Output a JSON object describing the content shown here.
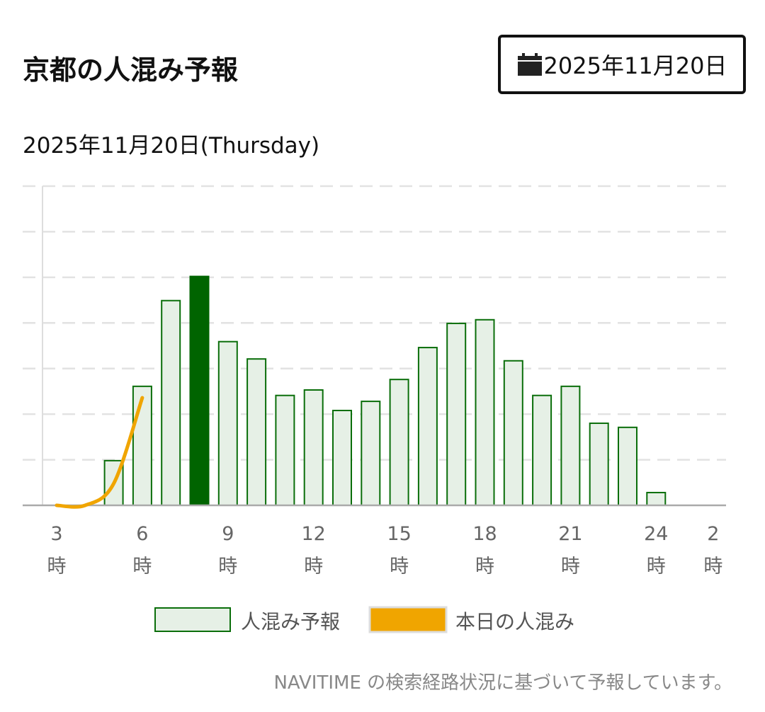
{
  "header": {
    "title": "京都の人混み予報",
    "date_button": "2025年11月20日"
  },
  "chart_data": {
    "type": "bar",
    "title": "2025年11月20日(Thursday)",
    "categories": [
      "3\n時",
      null,
      null,
      "6\n時",
      null,
      null,
      "9\n時",
      null,
      null,
      "12\n時",
      null,
      null,
      "15\n時",
      null,
      null,
      "18\n時",
      null,
      null,
      "21\n時",
      null,
      null,
      "24\n時",
      null,
      "2\n時"
    ],
    "series": [
      {
        "name": "人混み予報",
        "type": "bar",
        "color": "#e6f0e6",
        "edge_color": "#0a6e0a",
        "highlight_color": "#006400",
        "highlight_index": 5,
        "values": [
          0,
          0,
          0.98,
          2.61,
          4.49,
          5.02,
          3.59,
          3.21,
          2.41,
          2.53,
          2.08,
          2.28,
          2.76,
          3.46,
          3.99,
          4.07,
          3.17,
          2.41,
          2.61,
          1.8,
          1.71,
          0.28,
          0,
          0
        ]
      },
      {
        "name": "本日の人混み",
        "type": "line",
        "color": "#f0a500",
        "values": [
          0,
          0,
          0.48,
          2.36,
          null,
          null,
          null,
          null,
          null,
          null,
          null,
          null,
          null,
          null,
          null,
          null,
          null,
          null,
          null,
          null,
          null,
          null,
          null,
          null
        ]
      }
    ],
    "ylim": [
      0,
      7
    ],
    "yticks": [
      1,
      2,
      3,
      4,
      5,
      6,
      7
    ],
    "grid": true
  },
  "footer": {
    "note": "NAVITIME の検索経路状況に基づいて予報しています。"
  }
}
